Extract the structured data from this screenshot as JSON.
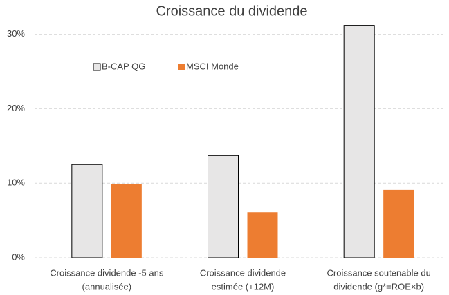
{
  "chart_data": {
    "type": "bar",
    "title": "Croissance du dividende",
    "categories": [
      [
        "Croissance dividende -5 ans",
        "(annualisée)"
      ],
      [
        "Croissance dividende",
        "estimée (+12M)"
      ],
      [
        "Croissance soutenable du",
        "dividende (g*=ROE×b)"
      ]
    ],
    "series": [
      {
        "name": "B-CAP QG",
        "color": "#e7e6e6",
        "values": [
          12.5,
          13.7,
          31.2
        ]
      },
      {
        "name": "MSCI Monde",
        "color": "#ed7d31",
        "values": [
          9.9,
          6.1,
          9.1
        ]
      }
    ],
    "ylim": [
      0,
      32
    ],
    "yticks": [
      {
        "value": 0,
        "label": "0%"
      },
      {
        "value": 10,
        "label": "10%"
      },
      {
        "value": 20,
        "label": "20%"
      },
      {
        "value": 30,
        "label": "30%"
      }
    ],
    "grid": true,
    "legend": "top-left"
  }
}
